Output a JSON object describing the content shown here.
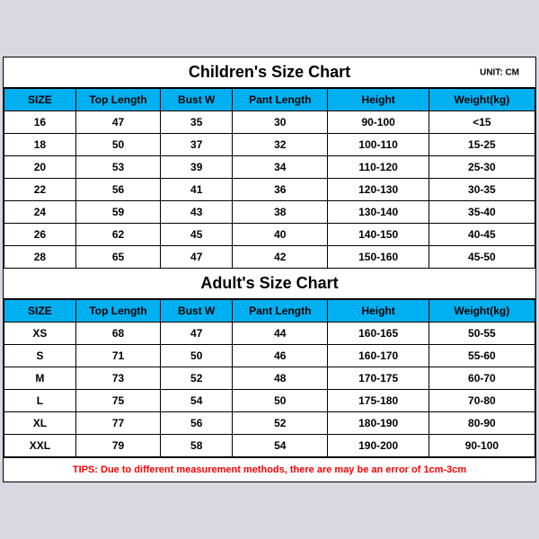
{
  "unit_label": "UNIT: CM",
  "children": {
    "title": "Children's Size Chart",
    "headers": [
      "SIZE",
      "Top Length",
      "Bust W",
      "Pant Length",
      "Height",
      "Weight(kg)"
    ],
    "rows": [
      [
        "16",
        "47",
        "35",
        "30",
        "90-100",
        "<15"
      ],
      [
        "18",
        "50",
        "37",
        "32",
        "100-110",
        "15-25"
      ],
      [
        "20",
        "53",
        "39",
        "34",
        "110-120",
        "25-30"
      ],
      [
        "22",
        "56",
        "41",
        "36",
        "120-130",
        "30-35"
      ],
      [
        "24",
        "59",
        "43",
        "38",
        "130-140",
        "35-40"
      ],
      [
        "26",
        "62",
        "45",
        "40",
        "140-150",
        "40-45"
      ],
      [
        "28",
        "65",
        "47",
        "42",
        "150-160",
        "45-50"
      ]
    ]
  },
  "adult": {
    "title": "Adult's Size Chart",
    "headers": [
      "SIZE",
      "Top Length",
      "Bust W",
      "Pant Length",
      "Height",
      "Weight(kg)"
    ],
    "rows": [
      [
        "XS",
        "68",
        "47",
        "44",
        "160-165",
        "50-55"
      ],
      [
        "S",
        "71",
        "50",
        "46",
        "160-170",
        "55-60"
      ],
      [
        "M",
        "73",
        "52",
        "48",
        "170-175",
        "60-70"
      ],
      [
        "L",
        "75",
        "54",
        "50",
        "175-180",
        "70-80"
      ],
      [
        "XL",
        "77",
        "56",
        "52",
        "180-190",
        "80-90"
      ],
      [
        "XXL",
        "79",
        "58",
        "54",
        "190-200",
        "90-100"
      ]
    ]
  },
  "tips": "TIPS: Due to different measurement methods, there are may be an error of 1cm-3cm"
}
